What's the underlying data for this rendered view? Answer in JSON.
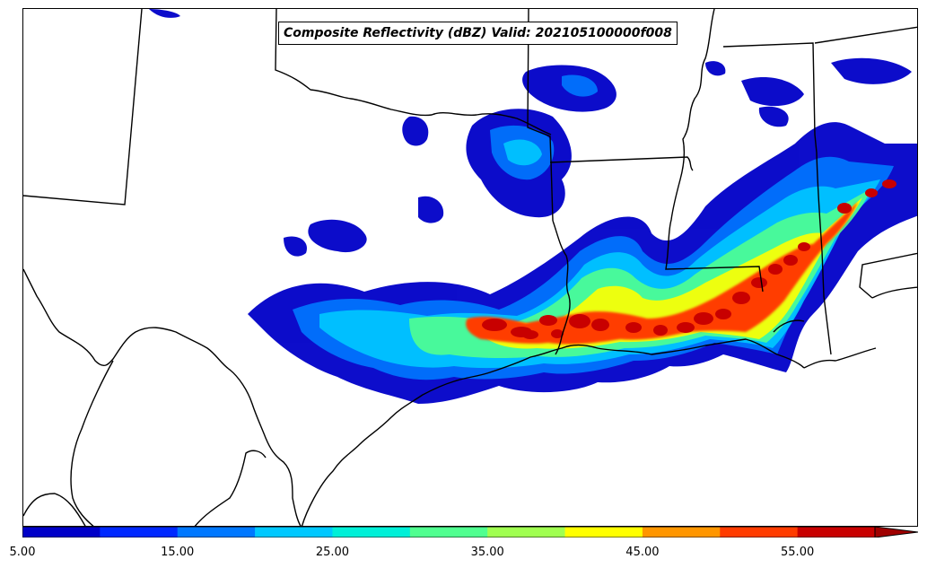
{
  "title": "Composite Reflectivity (dBZ) Valid: 202105100000f008",
  "colorbar": {
    "levels": [
      5,
      10,
      15,
      20,
      25,
      30,
      35,
      40,
      45,
      50,
      55
    ],
    "colors": [
      "#0000c8",
      "#0028ff",
      "#0078ff",
      "#00c8ff",
      "#00f0d8",
      "#50ff90",
      "#a0ff50",
      "#ffff00",
      "#ff9600",
      "#ff3c00",
      "#c80000"
    ],
    "extend_color": "#a00000",
    "tick_labels": [
      "5.00",
      "15.00",
      "25.00",
      "35.00",
      "45.00",
      "55.00"
    ]
  }
}
